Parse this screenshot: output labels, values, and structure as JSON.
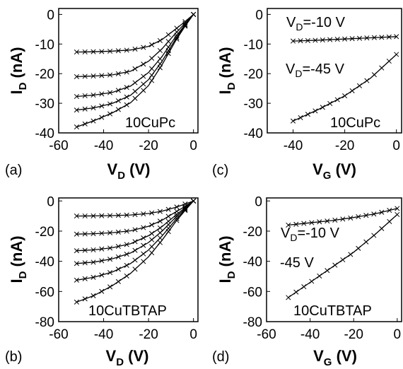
{
  "panels": [
    {
      "id": "a",
      "label": "(a)",
      "sample": "10CuPc",
      "xlabel_main": "V",
      "xlabel_sub": "D",
      "xlabel_unit": " (V)",
      "ylabel_main": "I",
      "ylabel_sub": "D",
      "ylabel_unit": " (nA)",
      "ann": []
    },
    {
      "id": "c",
      "label": "(c)",
      "sample": "10CuPc",
      "xlabel_main": "V",
      "xlabel_sub": "G",
      "xlabel_unit": " (V)",
      "ylabel_main": "I",
      "ylabel_sub": "D",
      "ylabel_unit": " (nA)",
      "ann": [
        {
          "main": "V",
          "sub": "D",
          "rest": "=-10 V"
        },
        {
          "main": "V",
          "sub": "D",
          "rest": "=-45 V"
        }
      ]
    },
    {
      "id": "b",
      "label": "(b)",
      "sample": "10CuTBTAP",
      "xlabel_main": "V",
      "xlabel_sub": "D",
      "xlabel_unit": " (V)",
      "ylabel_main": "I",
      "ylabel_sub": "D",
      "ylabel_unit": " (nA)",
      "ann": []
    },
    {
      "id": "d",
      "label": "(d)",
      "sample": "10CuTBTAP",
      "xlabel_main": "V",
      "xlabel_sub": "G",
      "xlabel_unit": " (V)",
      "ylabel_main": "I",
      "ylabel_sub": "D",
      "ylabel_unit": " (nA)",
      "ann": [
        {
          "main": "V",
          "sub": "D",
          "rest": "=-10 V"
        },
        {
          "main": "",
          "sub": "",
          "rest": "-45 V"
        }
      ]
    }
  ],
  "chart_data": [
    {
      "panel": "a",
      "type": "line",
      "markers": "x",
      "xlim": [
        -60,
        2
      ],
      "ylim": [
        -40,
        2
      ],
      "xticks": [
        -60,
        -40,
        -20,
        0
      ],
      "yticks": [
        0,
        -10,
        -20,
        -30,
        -40
      ],
      "series": [
        {
          "x": [
            -52,
            -44,
            -36,
            -28,
            -20,
            -14,
            -8,
            -4,
            0
          ],
          "y": [
            -12.7,
            -12.6,
            -12.4,
            -12.0,
            -10.8,
            -8.5,
            -5.0,
            -2.6,
            0
          ]
        },
        {
          "x": [
            -52,
            -44,
            -36,
            -28,
            -20,
            -14,
            -8,
            -4,
            0
          ],
          "y": [
            -21.0,
            -20.8,
            -20.4,
            -19.2,
            -15.8,
            -11.6,
            -6.4,
            -3.2,
            0
          ]
        },
        {
          "x": [
            -52,
            -44,
            -36,
            -28,
            -20,
            -14,
            -8,
            -4,
            0
          ],
          "y": [
            -27.7,
            -27.2,
            -26.3,
            -24.2,
            -19.6,
            -14.2,
            -7.6,
            -3.7,
            0
          ]
        },
        {
          "x": [
            -52,
            -44,
            -36,
            -28,
            -20,
            -14,
            -8,
            -4,
            0
          ],
          "y": [
            -32.3,
            -31.5,
            -30.0,
            -27.3,
            -22.0,
            -15.8,
            -8.4,
            -4.0,
            0
          ]
        },
        {
          "x": [
            -52,
            -44,
            -36,
            -28,
            -20,
            -14,
            -8,
            -4,
            0
          ],
          "y": [
            -38.0,
            -35.8,
            -33.2,
            -29.8,
            -24.0,
            -17.0,
            -9.0,
            -4.3,
            0
          ]
        }
      ]
    },
    {
      "panel": "c",
      "type": "line",
      "markers": "x",
      "xlim": [
        -50,
        2
      ],
      "ylim": [
        -40,
        2
      ],
      "xticks": [
        -40,
        -20,
        0
      ],
      "yticks": [
        0,
        -10,
        -20,
        -30,
        -40
      ],
      "series": [
        {
          "name": "VD=-10 V",
          "x": [
            -40,
            -30,
            -20,
            -10,
            0
          ],
          "y": [
            -9.0,
            -8.7,
            -8.3,
            -7.9,
            -7.5
          ]
        },
        {
          "name": "VD=-45 V",
          "x": [
            -40,
            -30,
            -20,
            -10,
            0
          ],
          "y": [
            -36.0,
            -32.0,
            -27.5,
            -21.5,
            -13.5
          ]
        }
      ]
    },
    {
      "panel": "b",
      "type": "line",
      "markers": "x",
      "xlim": [
        -60,
        2
      ],
      "ylim": [
        -80,
        2
      ],
      "xticks": [
        -60,
        -40,
        -20,
        0
      ],
      "yticks": [
        0,
        -20,
        -40,
        -60,
        -80
      ],
      "series": [
        {
          "x": [
            -52,
            -44,
            -36,
            -28,
            -20,
            -14,
            -8,
            -4,
            0
          ],
          "y": [
            -10.0,
            -9.9,
            -9.7,
            -9.3,
            -8.3,
            -6.8,
            -4.3,
            -2.2,
            0
          ]
        },
        {
          "x": [
            -52,
            -44,
            -36,
            -28,
            -20,
            -14,
            -8,
            -4,
            0
          ],
          "y": [
            -22.0,
            -21.7,
            -21.0,
            -19.8,
            -16.8,
            -12.8,
            -7.4,
            -3.8,
            0
          ]
        },
        {
          "x": [
            -52,
            -44,
            -36,
            -28,
            -20,
            -14,
            -8,
            -4,
            0
          ],
          "y": [
            -33.0,
            -32.4,
            -31.0,
            -28.3,
            -23.0,
            -17.0,
            -9.6,
            -4.8,
            0
          ]
        },
        {
          "x": [
            -52,
            -44,
            -36,
            -28,
            -20,
            -14,
            -8,
            -4,
            0
          ],
          "y": [
            -41.5,
            -40.5,
            -38.3,
            -34.5,
            -27.5,
            -20.0,
            -11.0,
            -5.5,
            0
          ]
        },
        {
          "x": [
            -52,
            -44,
            -36,
            -28,
            -20,
            -14,
            -8,
            -4,
            0
          ],
          "y": [
            -52.5,
            -50.5,
            -47.0,
            -41.5,
            -32.5,
            -23.2,
            -12.6,
            -6.2,
            0
          ]
        },
        {
          "x": [
            -52,
            -44,
            -36,
            -28,
            -20,
            -14,
            -8,
            -4,
            0
          ],
          "y": [
            -67.0,
            -62.5,
            -56.0,
            -48.0,
            -37.0,
            -26.0,
            -14.0,
            -6.8,
            0
          ]
        }
      ]
    },
    {
      "panel": "d",
      "type": "line",
      "markers": "x",
      "xlim": [
        -60,
        2
      ],
      "ylim": [
        -80,
        2
      ],
      "xticks": [
        -60,
        -40,
        -20,
        0
      ],
      "yticks": [
        0,
        -20,
        -40,
        -60,
        -80
      ],
      "series": [
        {
          "name": "VD=-10 V",
          "x": [
            -50,
            -40,
            -30,
            -20,
            -10,
            0
          ],
          "y": [
            -16.0,
            -14.5,
            -13.0,
            -11.0,
            -8.5,
            -5.0
          ]
        },
        {
          "name": "-45 V",
          "x": [
            -50,
            -40,
            -30,
            -20,
            -10,
            0
          ],
          "y": [
            -64.0,
            -54.0,
            -44.0,
            -34.0,
            -22.0,
            -9.0
          ]
        }
      ]
    }
  ]
}
